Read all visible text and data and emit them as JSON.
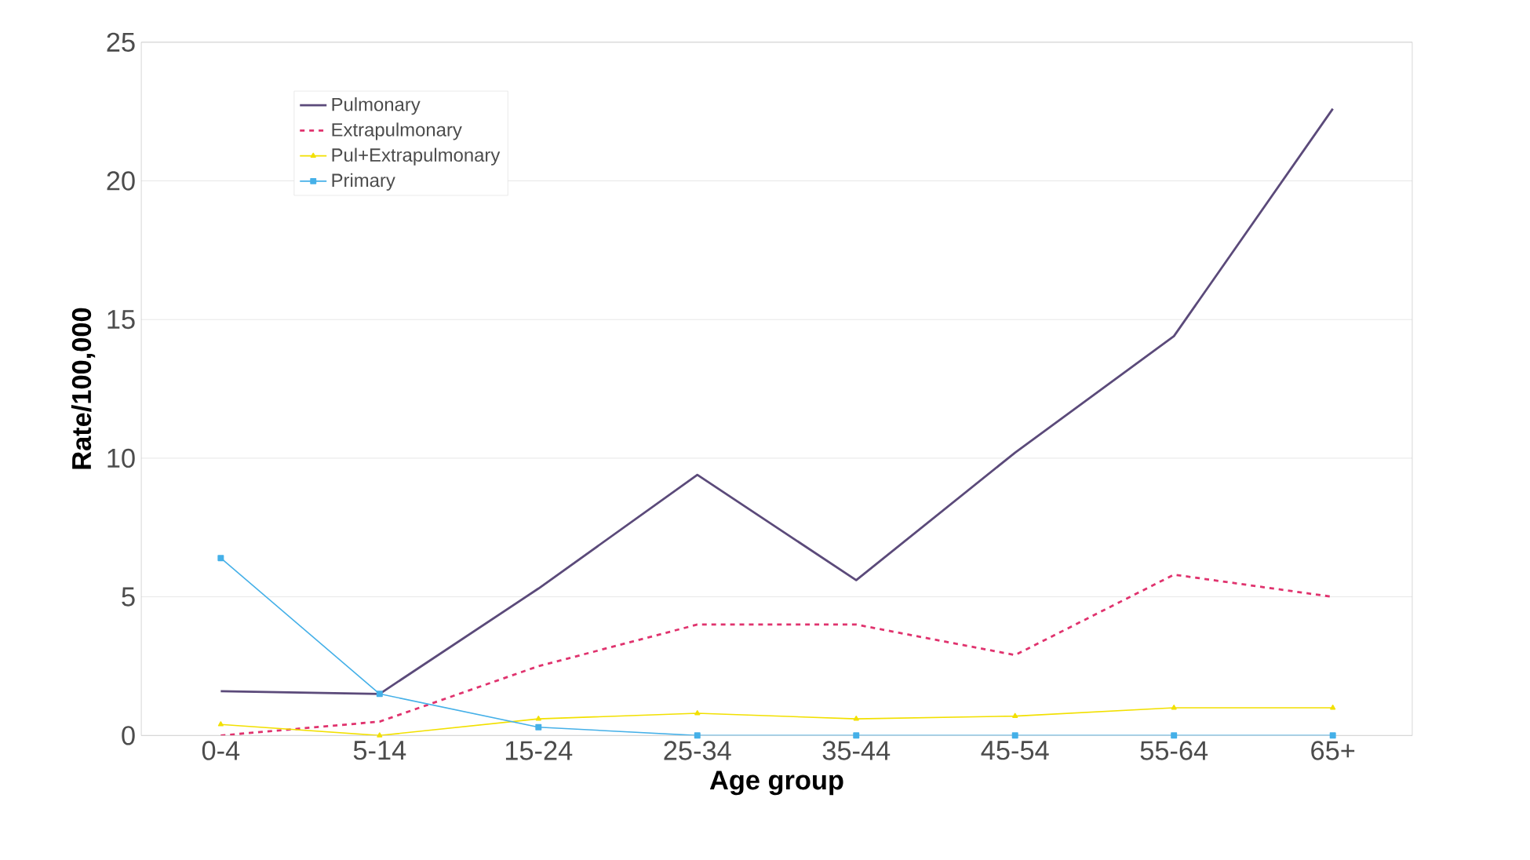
{
  "chart_data": {
    "type": "line",
    "xlabel": "Age group",
    "ylabel": "Rate/100,000",
    "categories": [
      "0-4",
      "5-14",
      "15-24",
      "25-34",
      "35-44",
      "45-54",
      "55-64",
      "65+"
    ],
    "series": [
      {
        "name": "Pulmonary",
        "color": "#5b4a7a",
        "marker": "none",
        "line_style": "solid",
        "values": [
          1.6,
          1.5,
          5.3,
          9.4,
          5.6,
          10.2,
          14.4,
          22.6
        ]
      },
      {
        "name": "Extrapulmonary",
        "color": "#e0336e",
        "marker": "none",
        "line_style": "dashed",
        "values": [
          0,
          0.5,
          2.5,
          4.0,
          4.0,
          2.9,
          5.8,
          5.0
        ]
      },
      {
        "name": "Pul+Extrapulmonary",
        "color": "#f2e000",
        "marker": "triangle",
        "line_style": "solid",
        "values": [
          0.4,
          0,
          0.6,
          0.8,
          0.6,
          0.7,
          1.0,
          1.0
        ]
      },
      {
        "name": "Primary",
        "color": "#45b0e8",
        "marker": "square",
        "line_style": "solid",
        "values": [
          6.4,
          1.5,
          0.3,
          0,
          0,
          0,
          0,
          0
        ]
      }
    ],
    "ylim": [
      0,
      25
    ],
    "yticks": [
      0,
      5,
      10,
      15,
      20,
      25
    ],
    "grid": "y",
    "legend": "top left"
  }
}
